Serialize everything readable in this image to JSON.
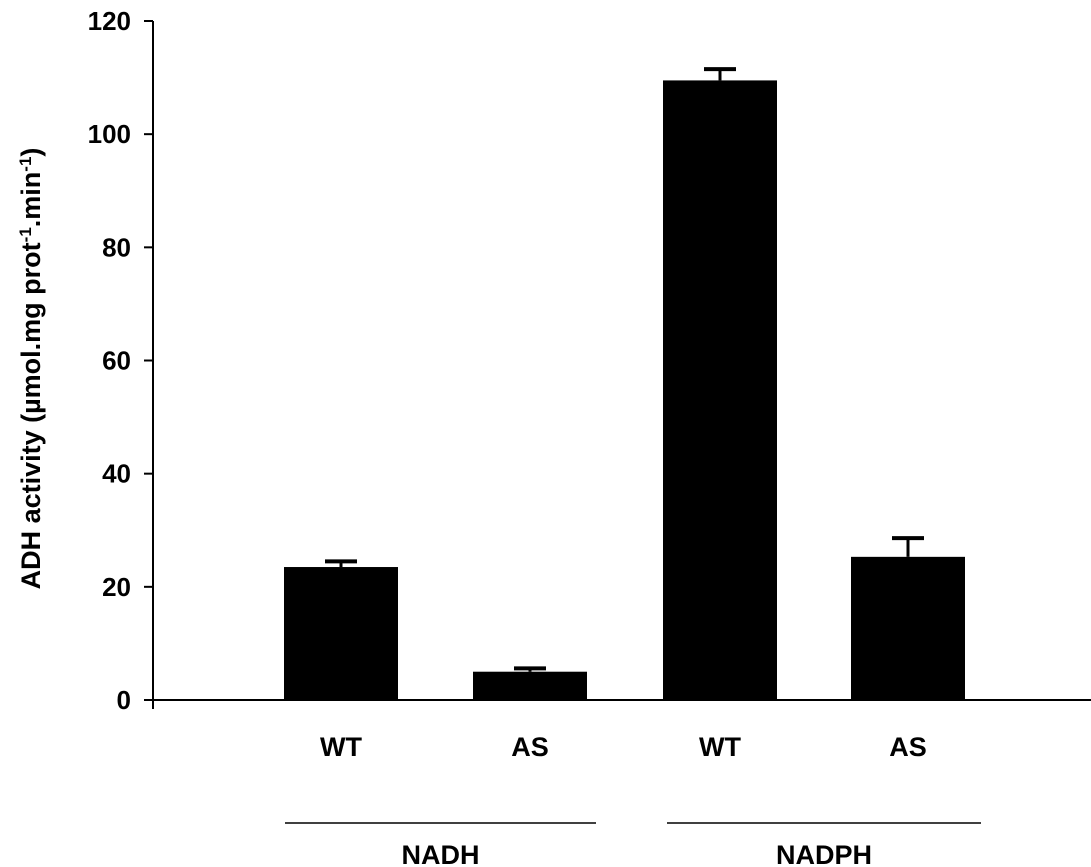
{
  "chart_data": {
    "type": "bar",
    "title": "",
    "xlabel": "",
    "ylabel": "ADH activity (µmol.mg prot",
    "ylabel_mid": ".min",
    "ylabel_end": ")",
    "ylabel_superscript": "-1",
    "ylim": [
      0,
      120
    ],
    "yticks": [
      "0",
      "20",
      "40",
      "60",
      "80",
      "100",
      "120"
    ],
    "grid": false,
    "categories": [
      "WT",
      "AS",
      "WT",
      "AS"
    ],
    "groups": [
      {
        "label": "NADH",
        "categories": [
          0,
          1
        ]
      },
      {
        "label": "NADPH",
        "categories": [
          2,
          3
        ]
      }
    ],
    "series": [
      {
        "values": [
          23.5,
          5.0,
          109.5,
          25.3
        ],
        "errors": [
          1.0,
          0.6,
          2.0,
          3.3
        ],
        "color": "#000000"
      }
    ]
  }
}
